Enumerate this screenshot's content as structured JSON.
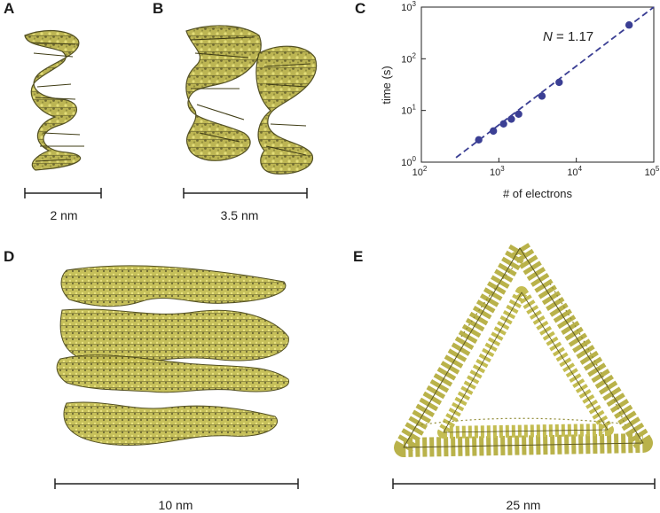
{
  "panels": {
    "a": {
      "label": "A",
      "scale": "2 nm"
    },
    "b": {
      "label": "B",
      "scale": "3.5 nm"
    },
    "c": {
      "label": "C"
    },
    "d": {
      "label": "D",
      "scale": "10 nm"
    },
    "e": {
      "label": "E",
      "scale": "25 nm"
    }
  },
  "colors": {
    "molecule": "#b9b24a",
    "molecule_dark": "#5e5a22",
    "point": "#3b3f94",
    "fit_line": "#3b3f94"
  },
  "chart_data": {
    "type": "scatter",
    "title": "",
    "xlabel": "# of electrons",
    "ylabel": "time (s)",
    "xscale": "log",
    "yscale": "log",
    "xlim": [
      100,
      100000
    ],
    "ylim": [
      1,
      1000
    ],
    "x_ticks": [
      {
        "base": "10",
        "exp": "2"
      },
      {
        "base": "10",
        "exp": "3"
      },
      {
        "base": "10",
        "exp": "4"
      },
      {
        "base": "10",
        "exp": "5"
      }
    ],
    "y_ticks": [
      {
        "base": "10",
        "exp": "0"
      },
      {
        "base": "10",
        "exp": "1"
      },
      {
        "base": "10",
        "exp": "2"
      },
      {
        "base": "10",
        "exp": "3"
      }
    ],
    "annotation": {
      "symbol": "N",
      "text": " = 1.17"
    },
    "points": [
      {
        "x": 550,
        "y": 2.7
      },
      {
        "x": 850,
        "y": 4.0
      },
      {
        "x": 1150,
        "y": 5.5
      },
      {
        "x": 1450,
        "y": 6.8
      },
      {
        "x": 1800,
        "y": 8.5
      },
      {
        "x": 3600,
        "y": 19
      },
      {
        "x": 6000,
        "y": 35
      },
      {
        "x": 48000,
        "y": 450
      }
    ],
    "fit": {
      "exponent": 1.17,
      "x_start": 280,
      "x_end": 100000
    },
    "grid": false
  }
}
